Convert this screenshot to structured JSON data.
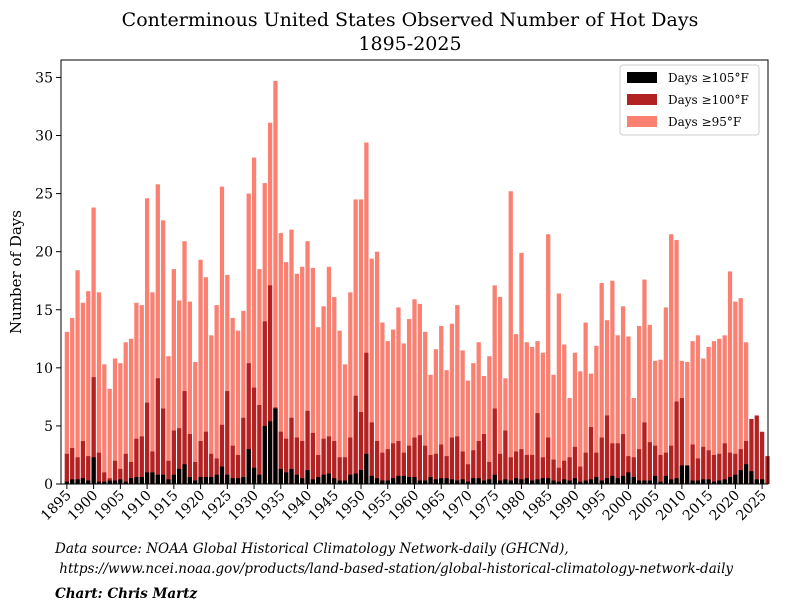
{
  "chart_data": {
    "type": "bar",
    "title": "Conterminous United States Observed Number of Hot Days",
    "subtitle": "1895-2025",
    "xlabel": "",
    "ylabel": "Number of Days",
    "ylim": [
      0,
      36.5
    ],
    "yticks": [
      0,
      5,
      10,
      15,
      20,
      25,
      30,
      35
    ],
    "xtick_years": [
      1895,
      1900,
      1905,
      1910,
      1915,
      1920,
      1925,
      1930,
      1935,
      1940,
      1945,
      1950,
      1955,
      1960,
      1965,
      1970,
      1975,
      1980,
      1985,
      1990,
      1995,
      2000,
      2005,
      2010,
      2015,
      2020,
      2025
    ],
    "years_start": 1895,
    "years_end": 2025,
    "legend_position": "top-right",
    "grid": false,
    "colors": {
      "d105": "#000000",
      "d100": "#b22222",
      "d95": "#fa8072"
    },
    "series": [
      {
        "name": "Days ≥105°F",
        "key": "d105",
        "values": [
          0.2,
          0.4,
          0.4,
          0.5,
          0.3,
          2.3,
          0.2,
          0.2,
          0.3,
          0.3,
          0.4,
          0.2,
          0.5,
          0.6,
          0.6,
          1.0,
          1.0,
          0.8,
          0.8,
          0.4,
          0.8,
          1.3,
          1.7,
          0.6,
          0.3,
          0.6,
          0.6,
          0.6,
          0.8,
          1.5,
          0.8,
          0.5,
          0.5,
          0.6,
          3.0,
          1.4,
          0.8,
          5.0,
          5.4,
          6.5,
          1.3,
          1.0,
          1.3,
          0.8,
          0.5,
          1.2,
          0.4,
          0.6,
          0.8,
          0.9,
          0.5,
          0.3,
          0.3,
          0.8,
          0.9,
          1.2,
          2.6,
          0.7,
          0.5,
          0.3,
          0.3,
          0.5,
          0.7,
          0.7,
          0.6,
          0.6,
          0.3,
          0.3,
          0.6,
          0.4,
          0.5,
          0.5,
          0.4,
          0.3,
          0.4,
          0.2,
          0.5,
          0.5,
          0.3,
          0.4,
          0.8,
          0.3,
          0.4,
          0.3,
          0.5,
          0.4,
          0.5,
          0.3,
          0.4,
          0.5,
          0.5,
          0.3,
          0.2,
          0.4,
          0.3,
          0.5,
          0.2,
          0.3,
          0.4,
          0.6,
          0.3,
          0.5,
          0.7,
          0.5,
          0.7,
          1.0,
          0.6,
          0.3,
          0.3,
          0.3,
          0.7,
          0.2,
          0.7,
          0.4,
          0.5,
          1.6,
          1.6,
          0.3,
          0.3,
          0.4,
          0.4,
          0.2,
          0.3,
          0.4,
          0.6,
          0.8,
          1.2,
          1.7,
          1.1,
          0.4,
          0.4
        ]
      },
      {
        "name": "Days ≥100°F",
        "key": "d100",
        "values": [
          2.6,
          3.1,
          2.3,
          3.7,
          2.4,
          9.2,
          2.7,
          1.0,
          0.5,
          2.0,
          1.3,
          2.6,
          1.9,
          3.9,
          4.1,
          7.0,
          2.8,
          9.1,
          6.5,
          2.0,
          4.6,
          4.8,
          8.0,
          4.3,
          1.9,
          3.7,
          4.5,
          2.6,
          2.2,
          5.1,
          8.0,
          3.3,
          2.5,
          5.7,
          10.4,
          8.3,
          6.8,
          14.0,
          17.1,
          6.6,
          4.5,
          3.9,
          5.7,
          4.0,
          3.7,
          6.3,
          4.4,
          2.5,
          3.9,
          4.1,
          3.7,
          2.3,
          2.3,
          4.0,
          7.6,
          6.2,
          11.3,
          5.3,
          3.7,
          2.7,
          3.0,
          3.5,
          3.7,
          2.7,
          3.3,
          4.0,
          4.2,
          3.3,
          2.5,
          2.6,
          3.4,
          2.4,
          4.0,
          4.1,
          2.8,
          1.7,
          2.9,
          3.7,
          4.3,
          1.9,
          6.5,
          2.6,
          4.6,
          2.3,
          2.8,
          3.0,
          2.5,
          2.5,
          6.1,
          2.3,
          4.0,
          2.1,
          1.4,
          2.0,
          2.3,
          3.2,
          1.5,
          2.7,
          4.9,
          2.7,
          4.0,
          5.9,
          3.5,
          3.5,
          4.3,
          2.4,
          2.3,
          3.0,
          5.3,
          3.6,
          3.3,
          2.5,
          2.7,
          3.3,
          7.1,
          7.4,
          1.2,
          3.4,
          2.2,
          3.2,
          2.9,
          2.5,
          2.6,
          3.5,
          2.7,
          2.6,
          3.0,
          3.7,
          5.6,
          5.9,
          4.5,
          2.4
        ]
      },
      {
        "name": "Days ≥95°F",
        "key": "d95",
        "values": [
          13.1,
          14.3,
          18.4,
          15.6,
          16.6,
          23.8,
          16.5,
          10.3,
          8.2,
          10.8,
          10.4,
          12.2,
          12.5,
          15.6,
          15.4,
          24.6,
          16.5,
          25.8,
          22.7,
          11.0,
          18.5,
          15.8,
          20.9,
          15.7,
          10.5,
          19.3,
          17.8,
          12.8,
          15.4,
          25.6,
          18.0,
          14.3,
          13.2,
          14.9,
          25.0,
          28.1,
          18.5,
          25.9,
          31.1,
          34.7,
          21.6,
          19.1,
          21.9,
          18.1,
          18.7,
          20.9,
          18.6,
          13.5,
          15.3,
          18.7,
          16.1,
          13.2,
          10.3,
          16.5,
          24.5,
          24.5,
          29.4,
          19.4,
          20.0,
          13.9,
          12.3,
          13.3,
          15.2,
          12.1,
          14.2,
          15.9,
          15.5,
          13.1,
          9.4,
          11.6,
          13.6,
          9.8,
          13.8,
          15.4,
          11.5,
          8.9,
          10.4,
          12.2,
          9.3,
          11.0,
          17.1,
          16.1,
          9.1,
          25.2,
          12.9,
          19.9,
          12.2,
          11.8,
          12.3,
          11.3,
          21.5,
          9.4,
          16.4,
          12.0,
          7.4,
          11.3,
          9.7,
          13.9,
          9.5,
          11.9,
          17.3,
          14.1,
          17.5,
          12.8,
          15.3,
          12.7,
          7.4,
          13.6,
          17.6,
          13.7,
          10.6,
          10.7,
          15.2,
          21.5,
          21.0,
          10.6,
          10.5,
          12.3,
          12.8,
          10.8,
          11.8,
          12.3,
          12.5,
          12.8,
          18.3,
          15.7,
          16.0,
          12.2
        ]
      }
    ]
  },
  "footer": {
    "source_line1": "Data source: NOAA Global Historical Climatology Network-daily (GHCNd),",
    "source_line2": " https://www.ncei.noaa.gov/products/land-based-station/global-historical-climatology-network-daily",
    "credit": "Chart: Chris Martz"
  }
}
